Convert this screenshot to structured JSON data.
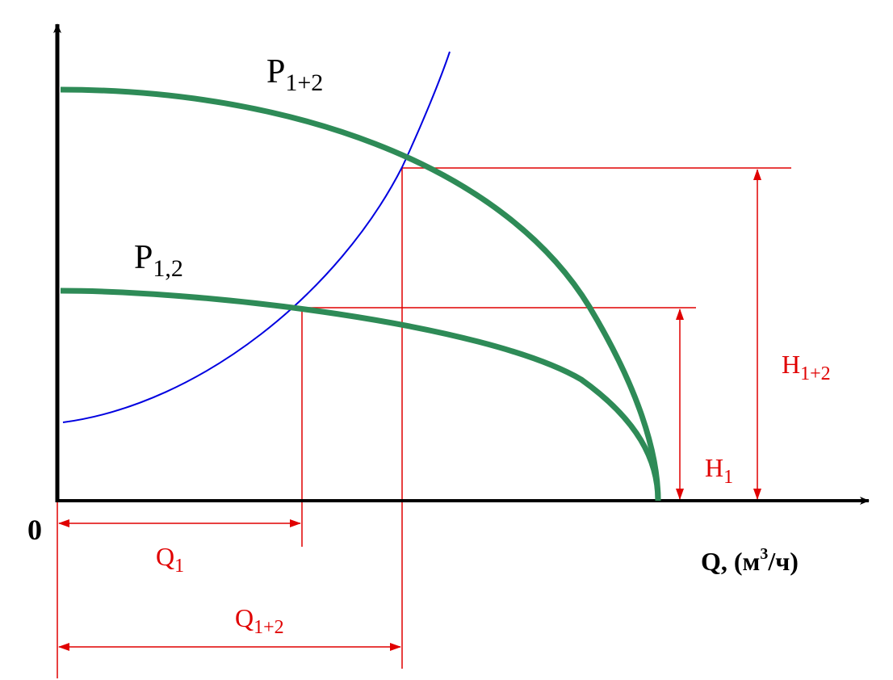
{
  "curves": {
    "pump_sum": {
      "base": "P",
      "sub": "1+2"
    },
    "pump_single": {
      "base": "P",
      "sub": "1,2"
    }
  },
  "heads": {
    "sum": {
      "base": "H",
      "sub": "1+2"
    },
    "single": {
      "base": "H",
      "sub": "1"
    }
  },
  "flows": {
    "single": {
      "base": "Q",
      "sub": "1"
    },
    "sum": {
      "base": "Q",
      "sub": "1+2"
    }
  },
  "axes": {
    "origin": "0",
    "x_label": {
      "before": "Q, (м",
      "sup": "3",
      "after": "/ч)"
    }
  }
}
